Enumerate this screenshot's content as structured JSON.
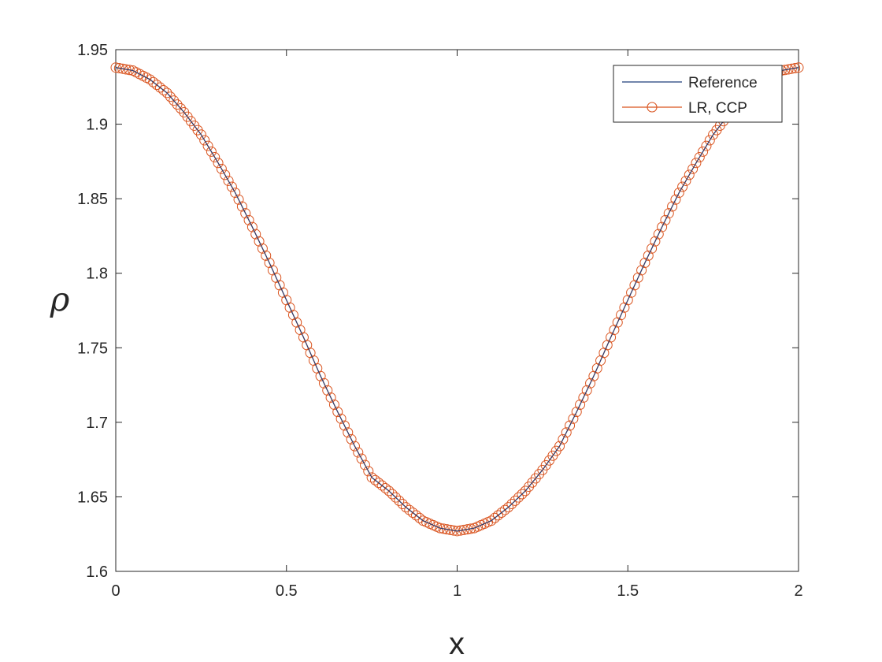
{
  "chart_data": {
    "type": "line",
    "title": "",
    "xlabel": "x",
    "ylabel": "ρ",
    "xlim": [
      0,
      2
    ],
    "ylim": [
      1.6,
      1.95
    ],
    "xticks": [
      0,
      0.5,
      1,
      1.5,
      2
    ],
    "xtick_labels": [
      "0",
      "0.5",
      "1",
      "1.5",
      "2"
    ],
    "yticks": [
      1.6,
      1.65,
      1.7,
      1.75,
      1.8,
      1.85,
      1.9,
      1.95
    ],
    "ytick_labels": [
      "1.6",
      "1.65",
      "1.7",
      "1.75",
      "1.8",
      "1.85",
      "1.9",
      "1.95"
    ],
    "grid": false,
    "legend_position": "top-right",
    "series": [
      {
        "name": "Reference",
        "style": "line",
        "color": "#1f3f7a",
        "x": [
          0,
          0.05,
          0.1,
          0.15,
          0.2,
          0.25,
          0.3,
          0.35,
          0.4,
          0.45,
          0.5,
          0.55,
          0.6,
          0.65,
          0.7,
          0.75,
          0.8,
          0.85,
          0.9,
          0.95,
          1,
          1.05,
          1.1,
          1.15,
          1.2,
          1.25,
          1.3,
          1.35,
          1.4,
          1.45,
          1.5,
          1.55,
          1.6,
          1.65,
          1.7,
          1.75,
          1.8,
          1.85,
          1.9,
          1.95,
          2
        ],
        "y": [
          1.938,
          1.936,
          1.93,
          1.921,
          1.908,
          1.893,
          1.874,
          1.854,
          1.831,
          1.807,
          1.782,
          1.757,
          1.731,
          1.707,
          1.684,
          1.663,
          1.654,
          1.643,
          1.634,
          1.629,
          1.627,
          1.629,
          1.634,
          1.643,
          1.654,
          1.668,
          1.684,
          1.707,
          1.731,
          1.757,
          1.782,
          1.807,
          1.831,
          1.854,
          1.874,
          1.893,
          1.908,
          1.921,
          1.93,
          1.936,
          1.938
        ]
      },
      {
        "name": "LR, CCP",
        "style": "line-circle-markers",
        "color": "#d9531e",
        "marker_count": 201,
        "x": [
          0,
          0.05,
          0.1,
          0.15,
          0.2,
          0.25,
          0.3,
          0.35,
          0.4,
          0.45,
          0.5,
          0.55,
          0.6,
          0.65,
          0.7,
          0.75,
          0.8,
          0.85,
          0.9,
          0.95,
          1,
          1.05,
          1.1,
          1.15,
          1.2,
          1.25,
          1.3,
          1.35,
          1.4,
          1.45,
          1.5,
          1.55,
          1.6,
          1.65,
          1.7,
          1.75,
          1.8,
          1.85,
          1.9,
          1.95,
          2
        ],
        "y": [
          1.938,
          1.936,
          1.93,
          1.921,
          1.908,
          1.893,
          1.874,
          1.854,
          1.831,
          1.807,
          1.782,
          1.757,
          1.731,
          1.707,
          1.684,
          1.663,
          1.654,
          1.643,
          1.634,
          1.629,
          1.627,
          1.629,
          1.634,
          1.643,
          1.654,
          1.668,
          1.684,
          1.707,
          1.731,
          1.757,
          1.782,
          1.807,
          1.831,
          1.854,
          1.874,
          1.893,
          1.908,
          1.921,
          1.93,
          1.936,
          1.938
        ]
      }
    ]
  }
}
